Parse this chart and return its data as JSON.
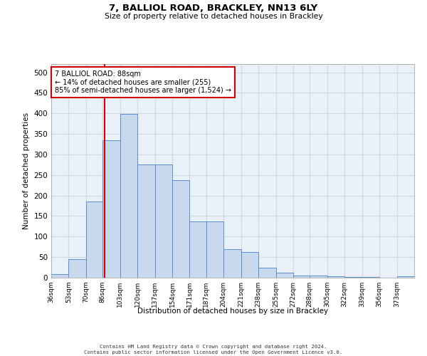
{
  "title1": "7, BALLIOL ROAD, BRACKLEY, NN13 6LY",
  "title2": "Size of property relative to detached houses in Brackley",
  "xlabel": "Distribution of detached houses by size in Brackley",
  "ylabel": "Number of detached properties",
  "footer": "Contains HM Land Registry data © Crown copyright and database right 2024.\nContains public sector information licensed under the Open Government Licence v3.0.",
  "categories": [
    "36sqm",
    "53sqm",
    "70sqm",
    "86sqm",
    "103sqm",
    "120sqm",
    "137sqm",
    "154sqm",
    "171sqm",
    "187sqm",
    "204sqm",
    "221sqm",
    "238sqm",
    "255sqm",
    "272sqm",
    "288sqm",
    "305sqm",
    "322sqm",
    "339sqm",
    "356sqm",
    "373sqm"
  ],
  "values": [
    9,
    45,
    185,
    335,
    398,
    275,
    275,
    238,
    137,
    137,
    70,
    62,
    25,
    12,
    6,
    5,
    3,
    2,
    1,
    0,
    4
  ],
  "bar_color": "#c9d9ed",
  "bar_edge_color": "#5b8fc7",
  "grid_color": "#d0d8e4",
  "bg_color": "#eaf0f8",
  "red_line_x": 88,
  "red_line_color": "#cc0000",
  "annotation_text": "7 BALLIOL ROAD: 88sqm\n← 14% of detached houses are smaller (255)\n85% of semi-detached houses are larger (1,524) →",
  "annotation_box_color": "#cc0000",
  "ylim": [
    0,
    520
  ],
  "yticks": [
    0,
    50,
    100,
    150,
    200,
    250,
    300,
    350,
    400,
    450,
    500
  ],
  "bin_starts": [
    36,
    53,
    70,
    86,
    103,
    120,
    137,
    154,
    171,
    187,
    204,
    221,
    238,
    255,
    272,
    288,
    305,
    322,
    339,
    356,
    373
  ],
  "bin_width": 17
}
